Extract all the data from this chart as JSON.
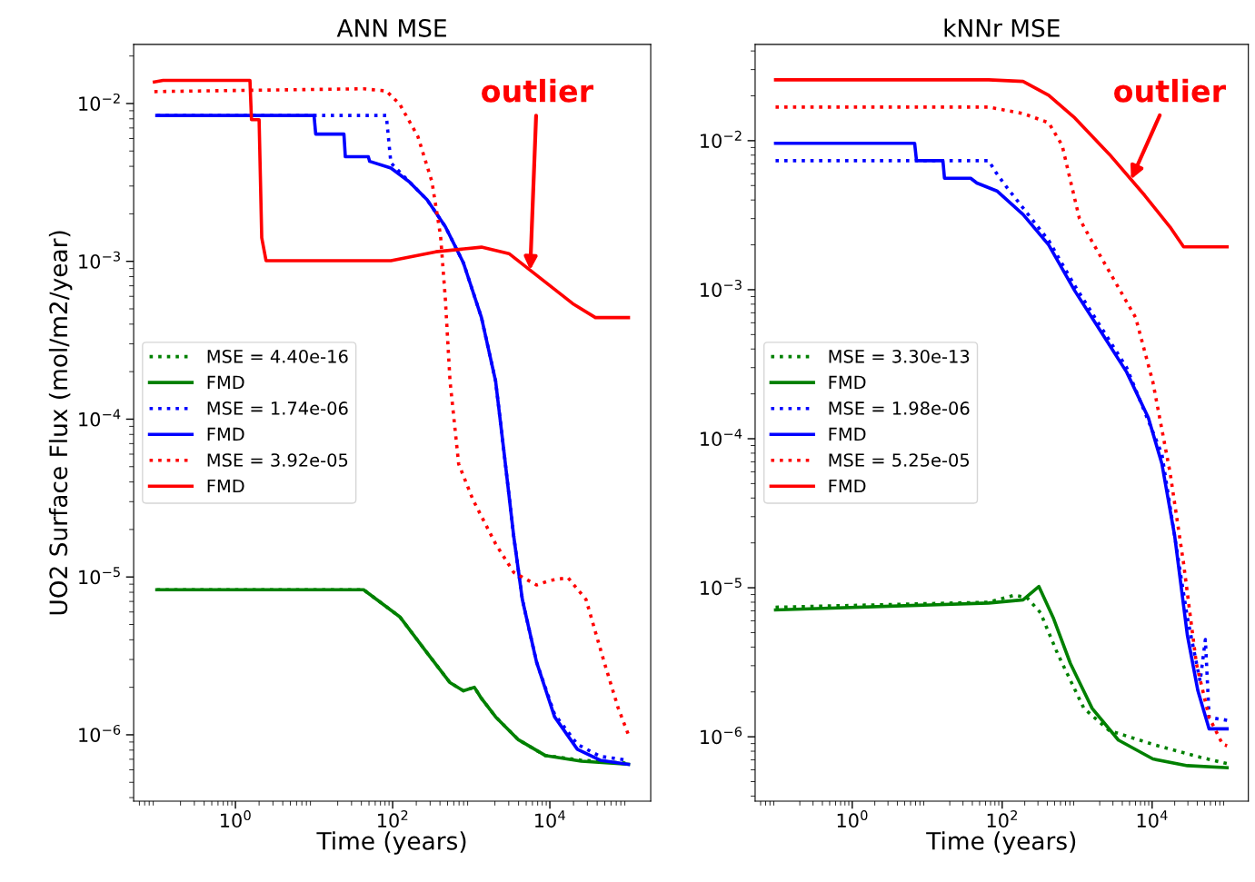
{
  "chart_data": [
    {
      "type": "line",
      "title": "ANN MSE",
      "xlabel": "Time (years)",
      "ylabel": "UO2 Surface Flux (mol/m2/year)",
      "log": "xy",
      "grid": false,
      "legend": "left",
      "xlim": [
        0.0507,
        192000
      ],
      "ylim": [
        3.8e-07,
        0.0237
      ],
      "xticks": [
        {
          "value": 1,
          "label": "10$^{0}$"
        },
        {
          "value": 100,
          "label": "10$^{2}$"
        },
        {
          "value": 10000,
          "label": "10$^{4}$"
        }
      ],
      "yticks": [
        {
          "value": 0.01,
          "label": "10$^{−2}$"
        },
        {
          "value": 0.001,
          "label": "10$^{−3}$"
        },
        {
          "value": 0.0001,
          "label": "10$^{−4}$"
        },
        {
          "value": 1e-05,
          "label": "10$^{−5}$"
        },
        {
          "value": 1e-06,
          "label": "10$^{−6}$"
        }
      ],
      "annotations": [
        {
          "text": "outlier",
          "x": 5620,
          "y": 0.00088
        }
      ],
      "series": [
        {
          "name": "MSE = 4.40e-16",
          "color": "#008000",
          "line_style": "dotted",
          "x": [
            0.1,
            42.7,
            123,
            275,
            537,
            794,
            1096,
            1349,
            2042,
            3981,
            8710,
            25119,
            100000
          ],
          "values": [
            8.3e-06,
            8.3e-06,
            5.6e-06,
            3.3e-06,
            2.14e-06,
            1.9e-06,
            2e-06,
            1.7e-06,
            1.3e-06,
            9.3e-07,
            7.4e-07,
            6.9e-07,
            6.6e-07
          ]
        },
        {
          "name": "FMD",
          "color": "#008000",
          "line_style": "solid",
          "x": [
            0.1,
            42.7,
            123,
            275,
            537,
            794,
            1096,
            1349,
            2042,
            3981,
            8710,
            25119,
            100000
          ],
          "values": [
            8.3e-06,
            8.3e-06,
            5.6e-06,
            3.3e-06,
            2.14e-06,
            1.9e-06,
            2e-06,
            1.7e-06,
            1.3e-06,
            9.3e-07,
            7.4e-07,
            6.8e-07,
            6.5e-07
          ]
        },
        {
          "name": "MSE = 1.74e-06",
          "color": "#0000ff",
          "line_style": "dotted",
          "x": [
            0.1,
            83,
            95,
            162,
            275,
            468,
            794,
            1349,
            2042,
            2630,
            3467,
            4467,
            6761,
            11482,
            22387,
            43652,
            100000
          ],
          "values": [
            0.0084,
            0.0084,
            0.0042,
            0.0032,
            0.00245,
            0.00166,
            0.00098,
            0.00044,
            0.000174,
            6e-05,
            1.82e-05,
            7.2e-06,
            2.9e-06,
            1.35e-06,
            8.7e-07,
            7.3e-07,
            6.9e-07
          ]
        },
        {
          "name": "FMD",
          "color": "#0000ff",
          "line_style": "solid",
          "x": [
            0.1,
            10,
            10.5,
            24,
            25,
            49,
            51,
            95,
            162,
            275,
            468,
            794,
            1349,
            2042,
            2630,
            3467,
            4467,
            6761,
            11482,
            22387,
            43652,
            100000
          ],
          "values": [
            0.0084,
            0.0084,
            0.0064,
            0.0064,
            0.0046,
            0.0046,
            0.0043,
            0.0039,
            0.0032,
            0.00245,
            0.00166,
            0.00098,
            0.00044,
            0.000174,
            6e-05,
            1.82e-05,
            7.2e-06,
            2.9e-06,
            1.3e-06,
            8.1e-07,
            6.9e-07,
            6.5e-07
          ]
        },
        {
          "name": "MSE = 3.92e-05",
          "color": "#ff0000",
          "line_style": "dotted",
          "x": [
            0.093,
            42.7,
            83,
            123,
            209,
            316,
            407,
            468,
            537,
            692,
            1047,
            2042,
            3467,
            6761,
            10000,
            17000,
            28840,
            49000,
            74000,
            100000
          ],
          "values": [
            0.0119,
            0.0124,
            0.012,
            0.0099,
            0.0062,
            0.0032,
            0.00145,
            0.00058,
            0.000174,
            5.2e-05,
            3.1e-05,
            1.62e-05,
            1.07e-05,
            8.9e-06,
            9.5e-06,
            9.9e-06,
            7.2e-06,
            2.9e-06,
            1.48e-06,
            1e-06
          ]
        },
        {
          "name": "FMD",
          "color": "#ff0000",
          "line_style": "solid",
          "x": [
            0.093,
            0.12,
            1.53,
            1.6,
            2.0,
            2.16,
            2.45,
            95,
            355,
            1349,
            3020,
            8710,
            19500,
            38000,
            100000
          ],
          "values": [
            0.0137,
            0.014,
            0.014,
            0.0079,
            0.0079,
            0.00141,
            0.00101,
            0.00101,
            0.00115,
            0.00123,
            0.00112,
            0.00074,
            0.00054,
            0.00044,
            0.00044
          ]
        }
      ]
    },
    {
      "type": "line",
      "title": "kNNr MSE",
      "xlabel": "Time (years)",
      "log": "xy",
      "grid": false,
      "legend": "left",
      "xlim": [
        0.0507,
        192000
      ],
      "ylim": [
        3.7e-07,
        0.0443
      ],
      "xticks": [
        {
          "value": 1,
          "label": "10$^{0}$"
        },
        {
          "value": 100,
          "label": "10$^{2}$"
        },
        {
          "value": 10000,
          "label": "10$^{4}$"
        }
      ],
      "yticks": [
        {
          "value": 0.01,
          "label": "10$^{−2}$"
        },
        {
          "value": 0.001,
          "label": "10$^{−3}$"
        },
        {
          "value": 0.0001,
          "label": "10$^{−4}$"
        },
        {
          "value": 1e-05,
          "label": "10$^{−5}$"
        },
        {
          "value": 1e-06,
          "label": "10$^{−6}$"
        }
      ],
      "annotations": [
        {
          "text": "outlier",
          "x": 5250,
          "y": 0.0055
        }
      ],
      "series": [
        {
          "name": "MSE = 3.30e-13",
          "color": "#008000",
          "line_style": "dotted",
          "x": [
            0.095,
            66,
            145,
            214,
            324,
            550,
            1230,
            2692,
            10233,
            38900,
            100000
          ],
          "values": [
            7.4e-06,
            8e-06,
            8.9e-06,
            8.6e-06,
            6.8e-06,
            3.6e-06,
            1.55e-06,
            1.1e-06,
            8.9e-07,
            7.4e-07,
            6.6e-07
          ]
        },
        {
          "name": "FMD",
          "color": "#008000",
          "line_style": "solid",
          "x": [
            0.095,
            66,
            190,
            309,
            479,
            813,
            1585,
            3548,
            10233,
            29512,
            100000
          ],
          "values": [
            7.1e-06,
            7.9e-06,
            8.3e-06,
            1.02e-05,
            6.3e-06,
            3.1e-06,
            1.55e-06,
            9.5e-07,
            7.1e-07,
            6.4e-07,
            6.2e-07
          ]
        },
        {
          "name": "MSE = 1.98e-06",
          "color": "#0000ff",
          "line_style": "dotted",
          "x": [
            0.095,
            66,
            83,
            112,
            417,
            933,
            4571,
            13490,
            29512,
            43652,
            51300,
            57544,
            100000
          ],
          "values": [
            0.00735,
            0.00735,
            0.0061,
            0.00495,
            0.00214,
            0.00106,
            0.0003,
            7.9e-05,
            6.3e-06,
            2.35e-06,
            4.5e-06,
            1.35e-06,
            1.29e-06
          ]
        },
        {
          "name": "FMD",
          "color": "#0000ff",
          "line_style": "solid",
          "x": [
            0.095,
            6.8,
            7.2,
            16.2,
            17,
            38,
            46,
            85,
            190,
            417,
            933,
            2089,
            4571,
            8913,
            13490,
            19953,
            29512,
            40738,
            57544,
            100000
          ],
          "values": [
            0.0096,
            0.0096,
            0.00735,
            0.00735,
            0.0056,
            0.0056,
            0.0052,
            0.0046,
            0.0032,
            0.002,
            0.00098,
            0.00052,
            0.00028,
            0.000138,
            6.8e-05,
            2.24e-05,
            4.8e-06,
            2.04e-06,
            1.13e-06,
            1.13e-06
          ]
        },
        {
          "name": "MSE = 5.25e-05",
          "color": "#ff0000",
          "line_style": "dotted",
          "x": [
            0.095,
            66,
            190,
            417,
            631,
            813,
            1072,
            1585,
            2692,
            6026,
            10233,
            17378,
            26300,
            38900,
            57500,
            87000,
            100000
          ],
          "values": [
            0.0168,
            0.0168,
            0.0152,
            0.0132,
            0.0093,
            0.0054,
            0.003,
            0.0021,
            0.00132,
            0.00065,
            0.00024,
            5.9e-05,
            1.45e-05,
            3.1e-06,
            1.35e-06,
            8.9e-07,
            8.7e-07
          ]
        },
        {
          "name": "FMD",
          "color": "#ff0000",
          "line_style": "solid",
          "x": [
            0.095,
            66,
            190,
            417,
            933,
            2692,
            7943,
            17378,
            26300,
            100000
          ],
          "values": [
            0.0256,
            0.0256,
            0.025,
            0.0202,
            0.0142,
            0.0081,
            0.0043,
            0.00263,
            0.00194,
            0.00194
          ]
        }
      ]
    }
  ]
}
